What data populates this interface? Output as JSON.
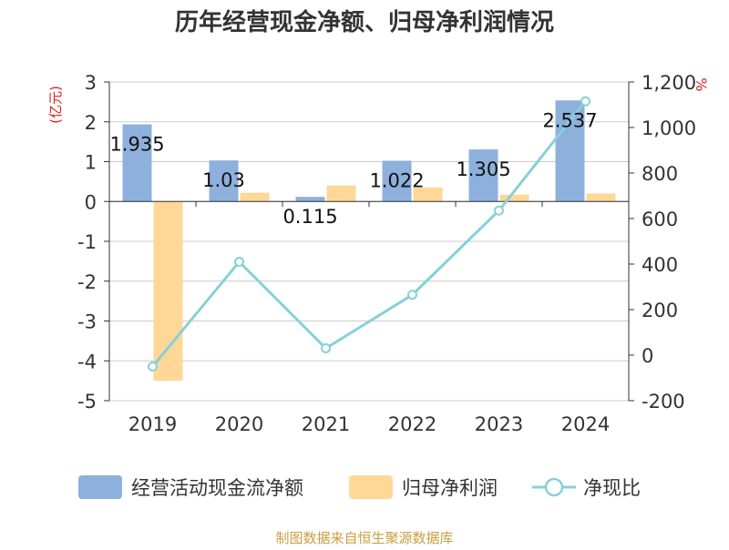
{
  "chart_data": {
    "type": "bar",
    "title": "历年经营现金净额、归母净利润情况",
    "categories": [
      "2019",
      "2020",
      "2021",
      "2022",
      "2023",
      "2024"
    ],
    "series": [
      {
        "name": "经营活动现金流净额",
        "type": "bar",
        "axis": "left",
        "color": "#8EB0DC",
        "values": [
          1.935,
          1.03,
          0.115,
          1.022,
          1.305,
          2.537
        ],
        "labels": [
          "1.935",
          "1.03",
          "0.115",
          "1.022",
          "1.305",
          "2.537"
        ]
      },
      {
        "name": "归母净利润",
        "type": "bar",
        "axis": "left",
        "color": "#FFD796",
        "values": [
          -4.5,
          0.22,
          0.4,
          0.35,
          0.17,
          0.2
        ]
      },
      {
        "name": "净现比",
        "type": "line",
        "axis": "right",
        "color": "#86D1D6",
        "values": [
          -50,
          410,
          30,
          265,
          635,
          1115
        ]
      }
    ],
    "y_left": {
      "label": "(亿元)",
      "min": -5,
      "max": 3,
      "ticks": [
        "3",
        "2",
        "1",
        "0",
        "-1",
        "-2",
        "-3",
        "-4",
        "-5"
      ]
    },
    "y_right": {
      "label": "%",
      "min": -200,
      "max": 1200,
      "ticks": [
        "1,200",
        "1,000",
        "800",
        "600",
        "400",
        "200",
        "0",
        "-200"
      ]
    },
    "grid": true,
    "legend": "bottom"
  },
  "source": "制图数据来自恒生聚源数据库",
  "colors": {
    "axis": "#333333",
    "grid": "#cccccc",
    "unit": "#e02020",
    "source": "#c8a040"
  }
}
